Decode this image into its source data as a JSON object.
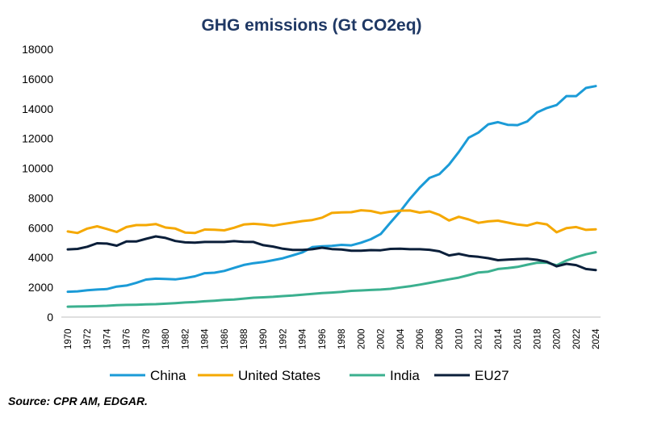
{
  "chart_data": {
    "type": "line",
    "title": "GHG emissions (Gt CO2eq)",
    "xlabel": "",
    "ylabel": "",
    "ylim": [
      0,
      18000
    ],
    "yticks": [
      0,
      2000,
      4000,
      6000,
      8000,
      10000,
      12000,
      14000,
      16000,
      18000
    ],
    "ytick_labels": [
      "0",
      "2000",
      "4000",
      "6000",
      "8000",
      "10000",
      "12000",
      "14000",
      "16000",
      "18000"
    ],
    "x": [
      1970,
      1971,
      1972,
      1973,
      1974,
      1975,
      1976,
      1977,
      1978,
      1979,
      1980,
      1981,
      1982,
      1983,
      1984,
      1985,
      1986,
      1987,
      1988,
      1989,
      1990,
      1991,
      1992,
      1993,
      1994,
      1995,
      1996,
      1997,
      1998,
      1999,
      2000,
      2001,
      2002,
      2003,
      2004,
      2005,
      2006,
      2007,
      2008,
      2009,
      2010,
      2011,
      2012,
      2013,
      2014,
      2015,
      2016,
      2017,
      2018,
      2019,
      2020,
      2021,
      2022,
      2023,
      2024
    ],
    "xtick_labels": [
      "1970",
      "1972",
      "1974",
      "1976",
      "1978",
      "1980",
      "1982",
      "1984",
      "1986",
      "1988",
      "1990",
      "1992",
      "1994",
      "1996",
      "1998",
      "2000",
      "2002",
      "2004",
      "2006",
      "2008",
      "2010",
      "2012",
      "2014",
      "2016",
      "2018",
      "2020",
      "2022",
      "2024"
    ],
    "grid": false,
    "legend": "bottom",
    "series": [
      {
        "name": "China",
        "color": "#1b9bd7",
        "values": [
          1700,
          1730,
          1800,
          1850,
          1880,
          2050,
          2120,
          2300,
          2520,
          2580,
          2560,
          2530,
          2620,
          2740,
          2950,
          2980,
          3100,
          3300,
          3500,
          3620,
          3700,
          3820,
          3950,
          4150,
          4350,
          4700,
          4760,
          4780,
          4850,
          4820,
          5000,
          5230,
          5580,
          6350,
          7100,
          7950,
          8700,
          9350,
          9600,
          10250,
          11100,
          12050,
          12400,
          12950,
          13100,
          12920,
          12900,
          13150,
          13750,
          14050,
          14250,
          14850,
          14850,
          15400,
          15520
        ]
      },
      {
        "name": "United States",
        "color": "#f5a800",
        "values": [
          5750,
          5650,
          5950,
          6100,
          5920,
          5720,
          6050,
          6180,
          6180,
          6250,
          6020,
          5950,
          5680,
          5650,
          5880,
          5870,
          5830,
          6000,
          6220,
          6270,
          6220,
          6140,
          6250,
          6350,
          6450,
          6520,
          6680,
          7000,
          7030,
          7050,
          7180,
          7130,
          6980,
          7080,
          7150,
          7160,
          7020,
          7100,
          6870,
          6490,
          6740,
          6560,
          6330,
          6430,
          6480,
          6350,
          6220,
          6150,
          6340,
          6230,
          5700,
          5980,
          6050,
          5860,
          5900
        ]
      },
      {
        "name": "India",
        "color": "#3bb08f",
        "values": [
          700,
          710,
          720,
          740,
          760,
          800,
          820,
          830,
          850,
          870,
          900,
          940,
          980,
          1010,
          1060,
          1100,
          1150,
          1180,
          1240,
          1300,
          1330,
          1360,
          1410,
          1450,
          1500,
          1560,
          1610,
          1650,
          1690,
          1760,
          1790,
          1820,
          1850,
          1900,
          1990,
          2070,
          2180,
          2300,
          2420,
          2540,
          2650,
          2820,
          3000,
          3050,
          3230,
          3290,
          3370,
          3520,
          3650,
          3660,
          3480,
          3800,
          4030,
          4220,
          4360
        ]
      },
      {
        "name": "EU27",
        "color": "#0b1f3a",
        "values": [
          4550,
          4580,
          4730,
          4960,
          4940,
          4800,
          5080,
          5080,
          5260,
          5420,
          5320,
          5110,
          5020,
          5000,
          5050,
          5050,
          5050,
          5100,
          5060,
          5050,
          4830,
          4740,
          4590,
          4510,
          4510,
          4560,
          4660,
          4570,
          4540,
          4460,
          4460,
          4500,
          4490,
          4580,
          4590,
          4560,
          4560,
          4520,
          4420,
          4140,
          4250,
          4110,
          4050,
          3960,
          3820,
          3860,
          3900,
          3920,
          3850,
          3720,
          3410,
          3580,
          3490,
          3230,
          3160
        ]
      }
    ],
    "source": "Source: CPR AM, EDGAR."
  }
}
